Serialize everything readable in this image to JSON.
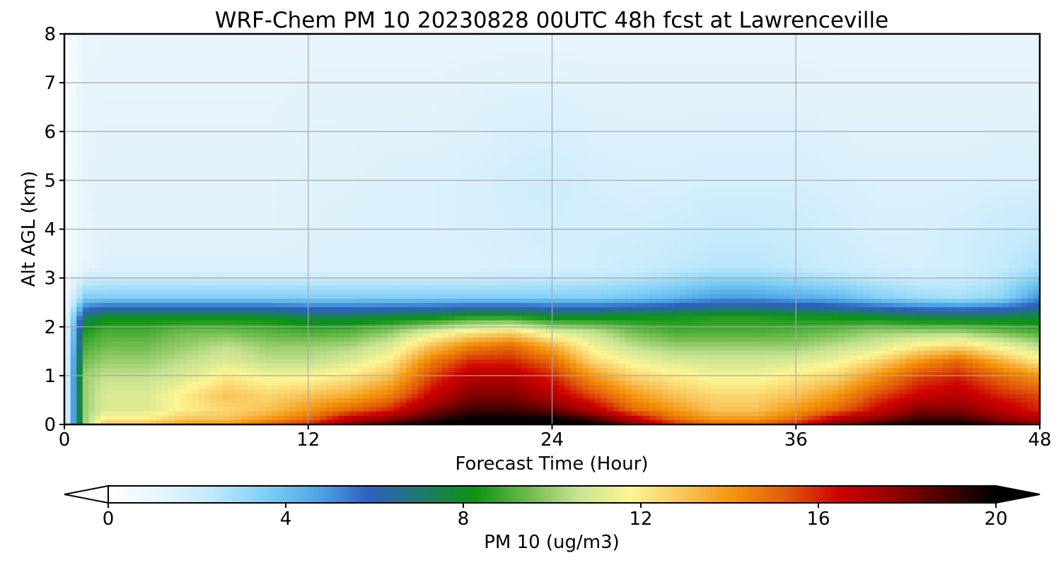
{
  "chart_data": {
    "type": "heatmap",
    "title": "WRF-Chem PM 10  20230828 00UTC 48h fcst at Lawrenceville",
    "xlabel": "Forecast Time (Hour)",
    "ylabel": "Alt AGL (km)",
    "xlim": [
      0,
      48
    ],
    "ylim": [
      0,
      8
    ],
    "xticks": [
      "0",
      "12",
      "24",
      "36",
      "48"
    ],
    "yticks": [
      "0",
      "1",
      "2",
      "3",
      "4",
      "5",
      "6",
      "7",
      "8"
    ],
    "grid": true,
    "colorbar": {
      "label": "PM 10  (ug/m3)",
      "range": [
        0,
        20
      ],
      "ticks": [
        "0",
        "4",
        "8",
        "12",
        "16",
        "20"
      ],
      "extend": "both",
      "orientation": "horizontal",
      "colors": [
        "#ffffff",
        "#e6f4fb",
        "#bfe8fb",
        "#7fcff5",
        "#4fa6e6",
        "#2f5fc0",
        "#1f7a6e",
        "#0a9410",
        "#6ab84a",
        "#c8e292",
        "#fcf593",
        "#f8c45a",
        "#f4920a",
        "#e25a0a",
        "#cd0000",
        "#980000",
        "#4a0000",
        "#000000"
      ]
    },
    "x": [
      0,
      1,
      2,
      4,
      6,
      8,
      10,
      12,
      14,
      16,
      18,
      20,
      22,
      24,
      26,
      28,
      30,
      32,
      34,
      36,
      38,
      40,
      42,
      44,
      46,
      48
    ],
    "y": [
      0,
      0.1,
      0.3,
      0.6,
      1.0,
      1.3,
      1.6,
      1.9,
      2.2,
      2.6,
      3.2,
      4.0,
      5.0,
      6.5,
      8.0
    ],
    "z": [
      [
        0.5,
        10,
        13,
        13,
        14,
        14,
        15,
        16,
        18,
        19,
        20,
        21,
        21,
        21,
        20,
        18,
        16,
        15,
        15,
        16,
        18,
        19,
        20,
        20,
        19,
        18
      ],
      [
        0.5,
        10,
        12,
        12,
        13,
        13,
        14,
        15,
        17,
        18,
        19,
        20,
        20,
        20,
        19,
        17,
        15,
        14,
        14,
        15,
        17,
        18,
        19,
        19,
        18,
        17
      ],
      [
        0.5,
        10,
        11,
        11,
        12,
        12.5,
        13,
        14,
        15,
        16,
        18,
        19,
        19,
        18.5,
        17,
        15,
        14,
        13,
        13,
        14,
        15,
        16.5,
        18,
        18,
        17,
        16
      ],
      [
        0.5,
        10,
        11,
        11,
        12,
        13,
        12.5,
        13,
        13.5,
        14.5,
        16.5,
        18,
        18,
        17,
        15.5,
        14,
        13,
        12.5,
        12.5,
        13,
        14,
        15.5,
        16.5,
        17,
        16,
        15.5
      ],
      [
        0.5,
        10,
        10.5,
        10.5,
        11,
        12,
        11.5,
        11.5,
        12,
        13,
        15.5,
        17,
        17,
        16,
        14,
        12.5,
        12,
        11.5,
        11.5,
        12,
        12.5,
        14,
        15.5,
        16,
        15,
        14
      ],
      [
        0.5,
        9.5,
        10,
        10,
        10.5,
        11,
        10.5,
        10.5,
        11,
        12,
        14.5,
        16,
        16,
        15,
        12.5,
        11.5,
        11,
        10.8,
        10.8,
        11,
        11.5,
        12.5,
        14,
        15,
        13.5,
        12
      ],
      [
        0.5,
        9,
        9.5,
        9.5,
        10,
        10.5,
        10,
        10,
        10.2,
        11,
        13,
        14.5,
        15,
        13.5,
        11.5,
        10.5,
        10,
        10,
        10,
        10,
        10.5,
        11,
        12,
        12.5,
        11.5,
        10.5
      ],
      [
        0.5,
        8.5,
        9,
        9,
        9.5,
        9.5,
        9.2,
        9,
        9.2,
        9.8,
        11,
        12,
        12.5,
        11,
        10.5,
        9.5,
        9,
        9,
        9,
        9.2,
        9.5,
        10,
        10,
        10,
        9.5,
        9
      ],
      [
        0.5,
        7,
        8,
        8,
        8,
        8,
        8,
        7.5,
        7.5,
        7.8,
        8,
        8.5,
        8.5,
        8,
        8,
        8.2,
        8.3,
        8.5,
        8.5,
        8.3,
        8.2,
        8,
        7.6,
        7.5,
        7.6,
        7.8
      ],
      [
        0.5,
        3.5,
        3.5,
        3.5,
        3.5,
        3.5,
        3.5,
        3.5,
        3.5,
        3.5,
        3.5,
        3.5,
        3.5,
        3.5,
        3.5,
        3.8,
        4.2,
        4.8,
        4.8,
        4.5,
        4.2,
        3.5,
        3,
        2.8,
        3.2,
        5
      ],
      [
        0.4,
        1.2,
        1.5,
        1.5,
        1.5,
        1.5,
        1.5,
        1.5,
        1.5,
        1.5,
        1.5,
        1.5,
        1.6,
        1.7,
        1.8,
        2.0,
        2.3,
        2.5,
        2.5,
        2.3,
        2.0,
        1.8,
        1.7,
        1.8,
        2.2,
        2.8
      ],
      [
        0.4,
        1.1,
        1.3,
        1.3,
        1.3,
        1.3,
        1.3,
        1.4,
        1.5,
        1.5,
        1.5,
        1.6,
        1.7,
        1.8,
        1.8,
        1.8,
        1.9,
        2.1,
        2.1,
        2.0,
        1.8,
        1.6,
        1.6,
        1.8,
        2.0,
        2.2
      ],
      [
        0.4,
        1.2,
        1.3,
        1.3,
        1.3,
        1.3,
        1.3,
        1.4,
        1.4,
        1.5,
        1.5,
        1.6,
        1.8,
        1.9,
        1.7,
        1.6,
        1.6,
        1.7,
        1.7,
        1.7,
        1.6,
        1.5,
        1.5,
        1.5,
        1.6,
        1.6
      ],
      [
        0.3,
        1.2,
        1.2,
        1.2,
        1.2,
        1.2,
        1.2,
        1.3,
        1.3,
        1.3,
        1.3,
        1.4,
        1.5,
        1.5,
        1.4,
        1.4,
        1.4,
        1.4,
        1.4,
        1.4,
        1.3,
        1.3,
        1.3,
        1.3,
        1.3,
        1.3
      ],
      [
        0.2,
        1.0,
        1.1,
        1.1,
        1.1,
        1.1,
        1.1,
        1.1,
        1.1,
        1.1,
        1.1,
        1.1,
        1.1,
        1.1,
        1.1,
        1.1,
        1.1,
        1.1,
        1.1,
        1.1,
        1.1,
        1.1,
        1.1,
        1.1,
        1.1,
        1.1
      ]
    ]
  }
}
